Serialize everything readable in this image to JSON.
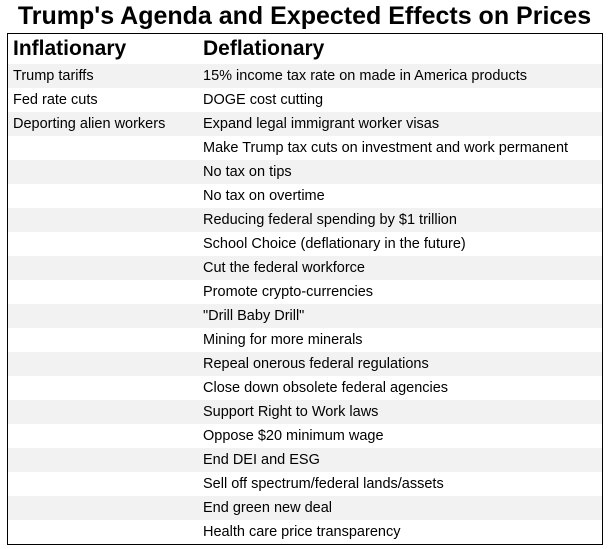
{
  "title": "Trump's Agenda and Expected Effects on Prices",
  "columns": {
    "inflationary": "Inflationary",
    "deflationary": "Deflationary"
  },
  "rows": [
    {
      "inflationary": "Trump tariffs",
      "deflationary": "15% income tax rate on made in America products"
    },
    {
      "inflationary": "Fed rate cuts",
      "deflationary": "DOGE cost cutting"
    },
    {
      "inflationary": "Deporting alien workers",
      "deflationary": "Expand legal immigrant worker visas"
    },
    {
      "inflationary": "",
      "deflationary": "Make Trump tax cuts on investment and work permanent"
    },
    {
      "inflationary": "",
      "deflationary": "No tax on tips"
    },
    {
      "inflationary": "",
      "deflationary": "No tax on overtime"
    },
    {
      "inflationary": "",
      "deflationary": "Reducing federal spending by $1 trillion"
    },
    {
      "inflationary": "",
      "deflationary": "School Choice (deflationary in the future)"
    },
    {
      "inflationary": "",
      "deflationary": "Cut the federal workforce"
    },
    {
      "inflationary": "",
      "deflationary": "Promote crypto-currencies"
    },
    {
      "inflationary": "",
      "deflationary": "\"Drill Baby Drill\""
    },
    {
      "inflationary": "",
      "deflationary": "Mining for more minerals"
    },
    {
      "inflationary": "",
      "deflationary": "Repeal onerous federal regulations"
    },
    {
      "inflationary": "",
      "deflationary": "Close down obsolete federal agencies"
    },
    {
      "inflationary": "",
      "deflationary": "Support Right to Work laws"
    },
    {
      "inflationary": "",
      "deflationary": "Oppose $20 minimum wage"
    },
    {
      "inflationary": "",
      "deflationary": "End DEI and ESG"
    },
    {
      "inflationary": "",
      "deflationary": "Sell off spectrum/federal lands/assets"
    },
    {
      "inflationary": "",
      "deflationary": "End green new deal"
    },
    {
      "inflationary": "",
      "deflationary": "Health care price transparency"
    }
  ]
}
